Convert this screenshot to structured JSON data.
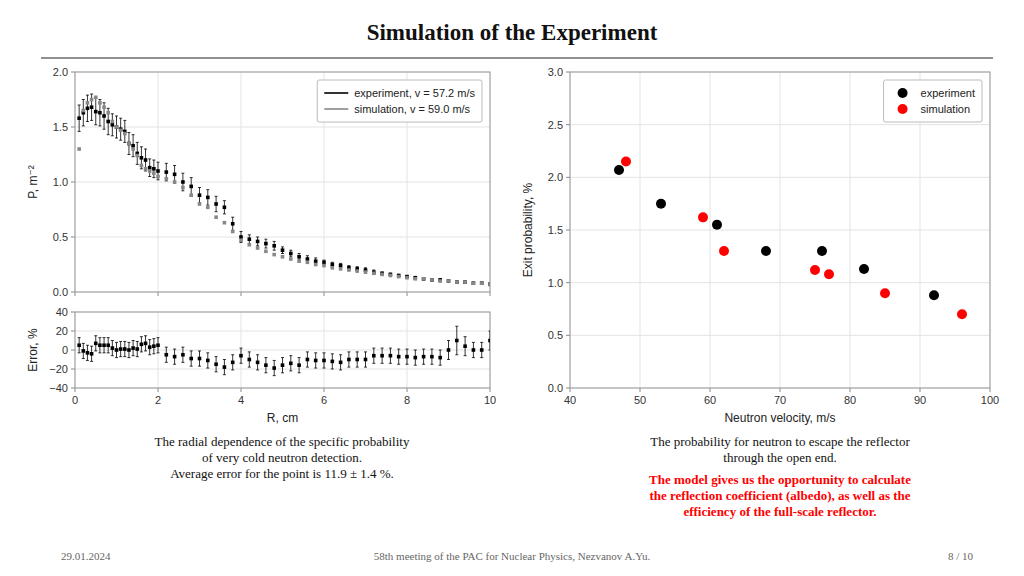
{
  "title": "Simulation of the Experiment",
  "annotations": [
    {
      "text": "The radial dependence of the specific probability"
    },
    {
      "text": "of very cold neutron detection."
    },
    {
      "text": "Average error for the point is 11.9 ± 1.4 %."
    },
    {
      "text": "The probability for neutron to escape the reflector"
    },
    {
      "text": "through the open end."
    },
    {
      "text": "The model gives us the opportunity to calculate",
      "color": "red"
    },
    {
      "text": "the reflection coefficient (albedo), as well as the",
      "color": "red"
    },
    {
      "text": "efficiency of the full-scale reflector.",
      "color": "red"
    },
    {
      "text": "29.01.2024",
      "color": "#666666"
    },
    {
      "text": "58th meeting of the PAC for Nuclear Physics, Nezvanov A.Yu.",
      "color": "#666666"
    },
    {
      "text": "8 / 10",
      "color": "#666666"
    }
  ],
  "chart_data": [
    {
      "type": "scatter",
      "ylabel": "P, m⁻²",
      "xlim": [
        0,
        10
      ],
      "ylim": [
        0.0,
        2.0
      ],
      "xticks": [
        0,
        2,
        4,
        6,
        8,
        10
      ],
      "yticks": [
        {
          "value": 0.0,
          "label": "0.0"
        },
        {
          "value": 0.5,
          "label": "0.5"
        },
        {
          "value": 1.0,
          "label": "1.0"
        },
        {
          "value": 1.5,
          "label": "1.5"
        },
        {
          "value": 2.0,
          "label": "2.0"
        }
      ],
      "tick_labels": "y",
      "grid": true,
      "legend": "upper right",
      "marker": "square",
      "series": [
        {
          "name": "experiment, v = 57.2 m/s",
          "color": "black",
          "x": [
            0.1,
            0.2,
            0.3,
            0.4,
            0.5,
            0.6,
            0.7,
            0.8,
            0.9,
            1.0,
            1.1,
            1.2,
            1.3,
            1.4,
            1.5,
            1.6,
            1.7,
            1.8,
            1.9,
            2.0,
            2.2,
            2.4,
            2.6,
            2.8,
            3.0,
            3.2,
            3.4,
            3.6,
            3.8,
            4.0,
            4.2,
            4.4,
            4.6,
            4.8,
            5.0,
            5.2,
            5.4,
            5.6,
            5.8,
            6.0,
            6.2,
            6.4,
            6.6,
            6.8,
            7.0,
            7.2,
            7.4,
            7.6,
            7.8,
            8.0,
            8.2,
            8.4,
            8.6,
            8.8,
            9.0,
            9.2,
            9.4,
            9.6,
            9.8,
            10.0
          ],
          "values": [
            1.58,
            1.63,
            1.67,
            1.68,
            1.64,
            1.63,
            1.6,
            1.55,
            1.52,
            1.5,
            1.48,
            1.46,
            1.35,
            1.33,
            1.26,
            1.22,
            1.2,
            1.13,
            1.12,
            1.1,
            1.09,
            1.07,
            1.0,
            0.96,
            0.88,
            0.86,
            0.8,
            0.77,
            0.62,
            0.5,
            0.48,
            0.46,
            0.44,
            0.42,
            0.38,
            0.35,
            0.32,
            0.3,
            0.28,
            0.27,
            0.25,
            0.24,
            0.22,
            0.21,
            0.2,
            0.18,
            0.17,
            0.16,
            0.15,
            0.14,
            0.13,
            0.12,
            0.11,
            0.11,
            0.1,
            0.09,
            0.09,
            0.08,
            0.08,
            0.07
          ],
          "errors": [
            0.12,
            0.12,
            0.12,
            0.12,
            0.12,
            0.12,
            0.12,
            0.12,
            0.1,
            0.1,
            0.1,
            0.1,
            0.1,
            0.1,
            0.1,
            0.1,
            0.1,
            0.08,
            0.08,
            0.08,
            0.08,
            0.08,
            0.08,
            0.08,
            0.07,
            0.07,
            0.07,
            0.06,
            0.06,
            0.05,
            0.04,
            0.04,
            0.04,
            0.04,
            0.03,
            0.03,
            0.03,
            0.03,
            0.03,
            0.02,
            0.02,
            0.02,
            0.02,
            0.02,
            0.02,
            0.02,
            0.01,
            0.01,
            0.01,
            0.01,
            0.01,
            0.01,
            0.01,
            0.01,
            0.01,
            0.01,
            0.01,
            0.01,
            0.01,
            0.01
          ]
        },
        {
          "name": "simulation, v = 59.0 m/s",
          "color": "#888888",
          "x": [
            0.1,
            0.2,
            0.3,
            0.4,
            0.5,
            0.6,
            0.7,
            0.8,
            0.9,
            1.0,
            1.1,
            1.2,
            1.3,
            1.4,
            1.5,
            1.6,
            1.7,
            1.8,
            1.9,
            2.0,
            2.2,
            2.4,
            2.6,
            2.8,
            3.0,
            3.2,
            3.4,
            3.6,
            3.8,
            4.0,
            4.2,
            4.4,
            4.6,
            4.8,
            5.0,
            5.2,
            5.4,
            5.6,
            5.8,
            6.0,
            6.2,
            6.4,
            6.6,
            6.8,
            7.0,
            7.2,
            7.4,
            7.6,
            7.8,
            8.0,
            8.2,
            8.4,
            8.6,
            8.8,
            9.0,
            9.2,
            9.4,
            9.6,
            9.8,
            10.0
          ],
          "values": [
            1.3,
            1.65,
            1.72,
            1.75,
            1.77,
            1.72,
            1.68,
            1.63,
            1.55,
            1.5,
            1.47,
            1.44,
            1.35,
            1.3,
            1.24,
            1.15,
            1.12,
            1.1,
            1.08,
            1.05,
            1.03,
            1.0,
            0.95,
            0.88,
            0.8,
            0.77,
            0.68,
            0.63,
            0.55,
            0.47,
            0.43,
            0.4,
            0.37,
            0.34,
            0.32,
            0.3,
            0.28,
            0.27,
            0.25,
            0.24,
            0.22,
            0.21,
            0.2,
            0.19,
            0.18,
            0.17,
            0.16,
            0.15,
            0.14,
            0.13,
            0.12,
            0.12,
            0.11,
            0.1,
            0.1,
            0.09,
            0.09,
            0.08,
            0.08,
            0.07
          ]
        }
      ]
    },
    {
      "type": "scatter",
      "xlabel": "R, cm",
      "ylabel": "Error, %",
      "xlim": [
        0,
        10
      ],
      "ylim": [
        -40,
        40
      ],
      "xticks": [
        0,
        2,
        4,
        6,
        8,
        10
      ],
      "yticks": [
        {
          "value": -40,
          "label": "−40"
        },
        {
          "value": -20,
          "label": "−20"
        },
        0,
        20,
        40
      ],
      "grid": true,
      "marker": "square",
      "series": [
        {
          "color": "black",
          "x": [
            0.1,
            0.2,
            0.3,
            0.4,
            0.5,
            0.6,
            0.7,
            0.8,
            0.9,
            1.0,
            1.1,
            1.2,
            1.3,
            1.4,
            1.5,
            1.6,
            1.7,
            1.8,
            1.9,
            2.0,
            2.2,
            2.4,
            2.6,
            2.8,
            3.0,
            3.2,
            3.4,
            3.6,
            3.8,
            4.0,
            4.2,
            4.4,
            4.6,
            4.8,
            5.0,
            5.2,
            5.4,
            5.6,
            5.8,
            6.0,
            6.2,
            6.4,
            6.6,
            6.8,
            7.0,
            7.2,
            7.4,
            7.6,
            7.8,
            8.0,
            8.2,
            8.4,
            8.6,
            8.8,
            9.0,
            9.2,
            9.4,
            9.6,
            9.8,
            10.0
          ],
          "values": [
            5,
            -1,
            -3,
            -4,
            7,
            5,
            5,
            5,
            2,
            0,
            1,
            1,
            0,
            2,
            1,
            6,
            7,
            3,
            4,
            5,
            -5,
            -7,
            -5,
            -9,
            -9,
            -11,
            -15,
            -18,
            -13,
            -6,
            -10,
            -13,
            -16,
            -19,
            -16,
            -14,
            -16,
            -10,
            -11,
            -11,
            -12,
            -13,
            -10,
            -10,
            -10,
            -6,
            -6,
            -6,
            -7,
            -7,
            -8,
            -7,
            -7,
            -8,
            0,
            10,
            4,
            0,
            0,
            10
          ],
          "errors": [
            8,
            8,
            8,
            8,
            8,
            8,
            8,
            8,
            8,
            8,
            8,
            8,
            8,
            8,
            8,
            8,
            8,
            8,
            8,
            8,
            8,
            8,
            8,
            8,
            8,
            8,
            8,
            8,
            8,
            8,
            8,
            8,
            8,
            8,
            8,
            8,
            8,
            8,
            8,
            8,
            8,
            8,
            8,
            8,
            8,
            8,
            8,
            8,
            8,
            8,
            8,
            8,
            8,
            8,
            10,
            15,
            10,
            8,
            8,
            10
          ]
        }
      ]
    },
    {
      "type": "scatter",
      "xlabel": "Neutron velocity, m/s",
      "ylabel": "Exit probability, %",
      "xlim": [
        40,
        100
      ],
      "ylim": [
        0.0,
        3.0
      ],
      "xticks": [
        40,
        50,
        60,
        70,
        80,
        90,
        100
      ],
      "yticks": [
        {
          "value": 0.0,
          "label": "0.0"
        },
        {
          "value": 0.5,
          "label": "0.5"
        },
        {
          "value": 1.0,
          "label": "1.0"
        },
        {
          "value": 1.5,
          "label": "1.5"
        },
        {
          "value": 2.0,
          "label": "2.0"
        },
        {
          "value": 2.5,
          "label": "2.5"
        },
        {
          "value": 3.0,
          "label": "3.0"
        }
      ],
      "grid": true,
      "legend": "upper right",
      "marker": "circle",
      "series": [
        {
          "name": "experiment",
          "color": "black",
          "x": [
            47,
            53,
            61,
            68,
            76,
            82,
            92
          ],
          "values": [
            2.07,
            1.75,
            1.55,
            1.3,
            1.3,
            1.13,
            0.88
          ]
        },
        {
          "name": "simulation",
          "color": "red",
          "x": [
            48,
            59,
            62,
            75,
            77,
            85,
            96
          ],
          "values": [
            2.15,
            1.62,
            1.3,
            1.12,
            1.08,
            0.9,
            0.7
          ]
        }
      ]
    }
  ]
}
